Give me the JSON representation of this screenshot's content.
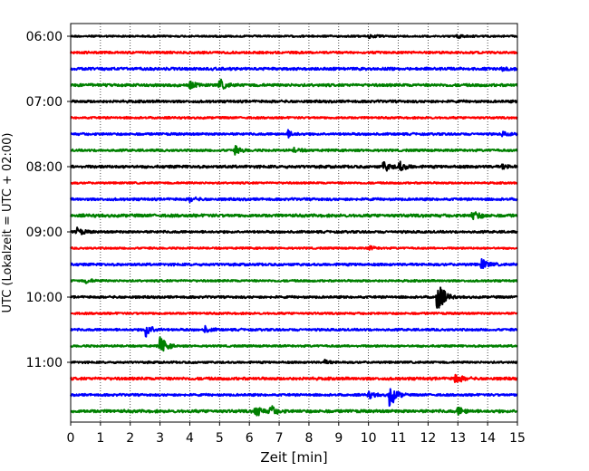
{
  "chart_data": {
    "type": "line",
    "title": "",
    "xlabel": "Zeit  [min]",
    "ylabel": "UTC (Lokalzeit = UTC + 02:00)",
    "xlim": [
      0,
      15
    ],
    "x_ticks": [
      "0",
      "1",
      "2",
      "3",
      "4",
      "5",
      "6",
      "7",
      "8",
      "9",
      "10",
      "11",
      "12",
      "13",
      "14",
      "15"
    ],
    "y_tick_labels": [
      "06:00",
      "07:00",
      "08:00",
      "09:00",
      "10:00",
      "11:00"
    ],
    "grid": "vertical dotted at each minute",
    "colors": [
      "#000000",
      "#ff0000",
      "#0000ff",
      "#008000"
    ],
    "traces": [
      {
        "time": "06:00",
        "color": "#000000",
        "amp": 0.8,
        "events": [
          {
            "t": 10,
            "a": 2
          },
          {
            "t": 13,
            "a": 2
          }
        ]
      },
      {
        "time": "06:15",
        "color": "#ff0000",
        "amp": 1.0,
        "events": []
      },
      {
        "time": "06:30",
        "color": "#0000ff",
        "amp": 1.2,
        "events": [
          {
            "t": 14.5,
            "a": 2
          }
        ]
      },
      {
        "time": "06:45",
        "color": "#008000",
        "amp": 1.2,
        "events": [
          {
            "t": 4,
            "a": 3
          },
          {
            "t": 5,
            "a": 5
          }
        ]
      },
      {
        "time": "07:00",
        "color": "#000000",
        "amp": 1.1,
        "events": []
      },
      {
        "time": "07:15",
        "color": "#ff0000",
        "amp": 0.9,
        "events": []
      },
      {
        "time": "07:30",
        "color": "#0000ff",
        "amp": 1.0,
        "events": [
          {
            "t": 7.3,
            "a": 3
          },
          {
            "t": 14.5,
            "a": 2
          }
        ]
      },
      {
        "time": "07:45",
        "color": "#008000",
        "amp": 1.0,
        "events": [
          {
            "t": 5.5,
            "a": 4
          },
          {
            "t": 7.5,
            "a": 2
          }
        ]
      },
      {
        "time": "08:00",
        "color": "#000000",
        "amp": 1.2,
        "events": [
          {
            "t": 10.5,
            "a": 5
          },
          {
            "t": 11,
            "a": 6
          },
          {
            "t": 14.5,
            "a": 2
          }
        ]
      },
      {
        "time": "08:15",
        "color": "#ff0000",
        "amp": 0.8,
        "events": []
      },
      {
        "time": "08:30",
        "color": "#0000ff",
        "amp": 1.1,
        "events": [
          {
            "t": 4,
            "a": 2
          }
        ]
      },
      {
        "time": "08:45",
        "color": "#008000",
        "amp": 1.3,
        "events": [
          {
            "t": 13.5,
            "a": 5
          }
        ]
      },
      {
        "time": "09:00",
        "color": "#000000",
        "amp": 1.0,
        "events": [
          {
            "t": 0.2,
            "a": 4
          }
        ]
      },
      {
        "time": "09:15",
        "color": "#ff0000",
        "amp": 0.8,
        "events": [
          {
            "t": 10,
            "a": 2
          }
        ]
      },
      {
        "time": "09:30",
        "color": "#0000ff",
        "amp": 1.1,
        "events": [
          {
            "t": 13.8,
            "a": 5
          }
        ]
      },
      {
        "time": "09:45",
        "color": "#008000",
        "amp": 0.9,
        "events": [
          {
            "t": 0.5,
            "a": 2
          }
        ]
      },
      {
        "time": "10:00",
        "color": "#000000",
        "amp": 1.0,
        "events": [
          {
            "t": 12.3,
            "a": 18
          }
        ]
      },
      {
        "time": "10:15",
        "color": "#ff0000",
        "amp": 0.9,
        "events": []
      },
      {
        "time": "10:30",
        "color": "#0000ff",
        "amp": 1.0,
        "events": [
          {
            "t": 2.5,
            "a": 8
          },
          {
            "t": 4.5,
            "a": 3
          }
        ]
      },
      {
        "time": "10:45",
        "color": "#008000",
        "amp": 0.9,
        "events": [
          {
            "t": 3,
            "a": 9
          }
        ]
      },
      {
        "time": "11:00",
        "color": "#000000",
        "amp": 0.9,
        "events": [
          {
            "t": 8.5,
            "a": 2
          }
        ]
      },
      {
        "time": "11:15",
        "color": "#ff0000",
        "amp": 1.2,
        "events": [
          {
            "t": 12.9,
            "a": 5
          }
        ]
      },
      {
        "time": "11:30",
        "color": "#0000ff",
        "amp": 1.0,
        "events": [
          {
            "t": 10,
            "a": 3
          },
          {
            "t": 10.7,
            "a": 12
          }
        ]
      },
      {
        "time": "11:45",
        "color": "#008000",
        "amp": 1.3,
        "events": [
          {
            "t": 6.2,
            "a": 6
          },
          {
            "t": 6.7,
            "a": 5
          },
          {
            "t": 13,
            "a": 4
          }
        ]
      }
    ]
  }
}
